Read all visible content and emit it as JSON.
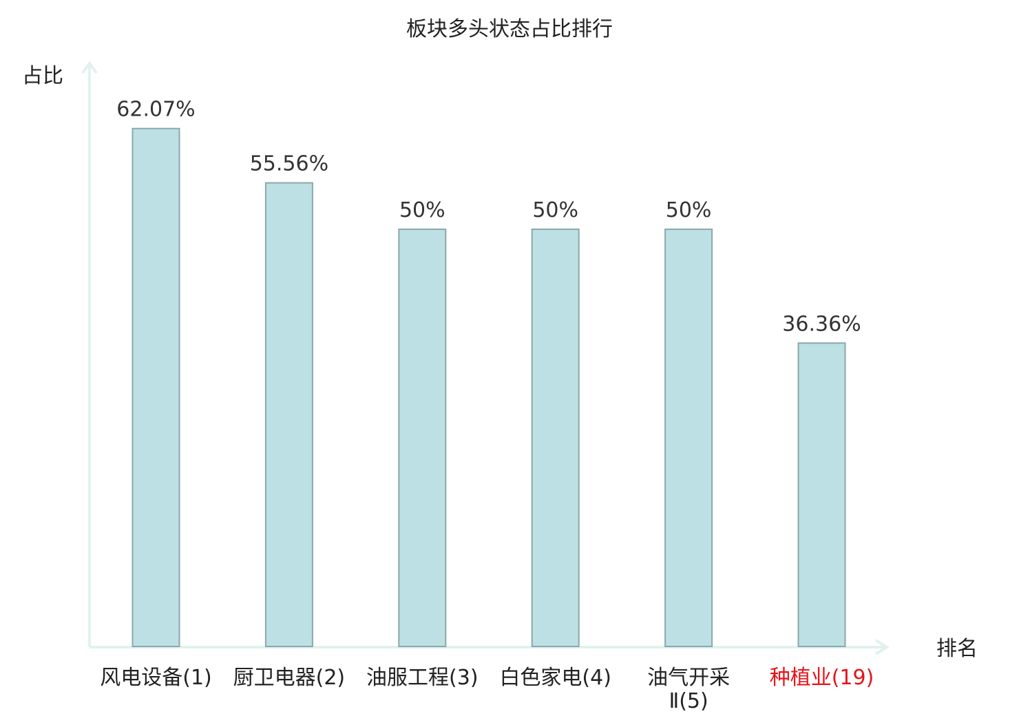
{
  "chart_data": {
    "type": "bar",
    "title": "板块多头状态占比排行",
    "ylabel": "占比",
    "xlabel": "排名",
    "categories": [
      [
        "风电设备(1)"
      ],
      [
        "厨卫电器(2)"
      ],
      [
        "油服工程(3)"
      ],
      [
        "白色家电(4)"
      ],
      [
        "油气开采",
        "Ⅱ(5)"
      ],
      [
        "种植业(19)"
      ]
    ],
    "values": [
      62.07,
      55.56,
      50,
      50,
      50,
      36.36
    ],
    "value_labels": [
      "62.07%",
      "55.56%",
      "50%",
      "50%",
      "50%",
      "36.36%"
    ],
    "highlight_index": 5,
    "ylim": [
      0,
      65
    ],
    "grid": false,
    "colors": {
      "bar_fill": "#bce0e3",
      "bar_stroke": "#8aa8ab",
      "axis": "#e0f2ef",
      "highlight_label": "#e8141a",
      "label": "#222222",
      "value_label": "#333333"
    }
  }
}
